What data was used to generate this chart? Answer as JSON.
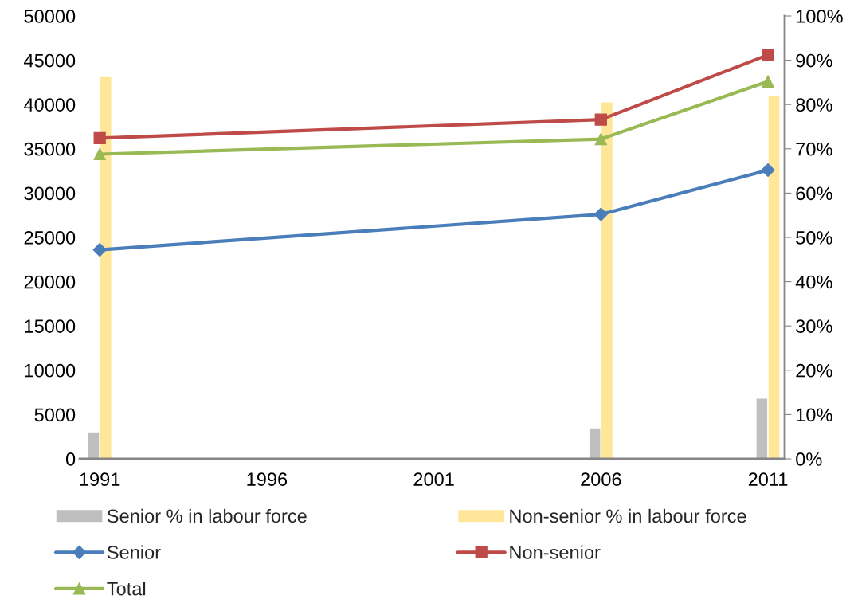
{
  "chart_data": {
    "type": "line",
    "x": [
      1991,
      2006,
      2011
    ],
    "series": [
      {
        "name": "Senior % in labour force",
        "type": "bar",
        "axis": "y2",
        "color": "#bfbfbf",
        "values": [
          6.1,
          7.0,
          13.7
        ]
      },
      {
        "name": "Non-senior % in labour force",
        "type": "bar",
        "axis": "y2",
        "color": "#ffe699",
        "values": [
          86.3,
          80.6,
          82.0
        ]
      },
      {
        "name": "Senior",
        "color": "#4a7ebb",
        "marker": "diamond",
        "values": [
          23600,
          27600,
          32600
        ]
      },
      {
        "name": "Non-senior",
        "color": "#be4b48",
        "marker": "square",
        "values": [
          36200,
          38300,
          45600
        ]
      },
      {
        "name": "Total",
        "color": "#98b954",
        "marker": "triangle",
        "values": [
          34400,
          36100,
          42600
        ]
      }
    ],
    "xlim": [
      1990.4,
      2011.5
    ],
    "xticks": [
      1991,
      1996,
      2001,
      2006,
      2011
    ],
    "ylim": [
      0,
      50000
    ],
    "yticks": [
      0,
      5000,
      10000,
      15000,
      20000,
      25000,
      30000,
      35000,
      40000,
      45000,
      50000
    ],
    "y2lim": [
      0,
      100
    ],
    "y2ticks": [
      {
        "value": 0,
        "label": "0%"
      },
      {
        "value": 10,
        "label": "10%"
      },
      {
        "value": 20,
        "label": "20%"
      },
      {
        "value": 30,
        "label": "30%"
      },
      {
        "value": 40,
        "label": "40%"
      },
      {
        "value": 50,
        "label": "50%"
      },
      {
        "value": 60,
        "label": "60%"
      },
      {
        "value": 70,
        "label": "70%"
      },
      {
        "value": 80,
        "label": "80%"
      },
      {
        "value": 90,
        "label": "90%"
      },
      {
        "value": 100,
        "label": "100%"
      }
    ],
    "grid": false,
    "legend": "bottom"
  }
}
